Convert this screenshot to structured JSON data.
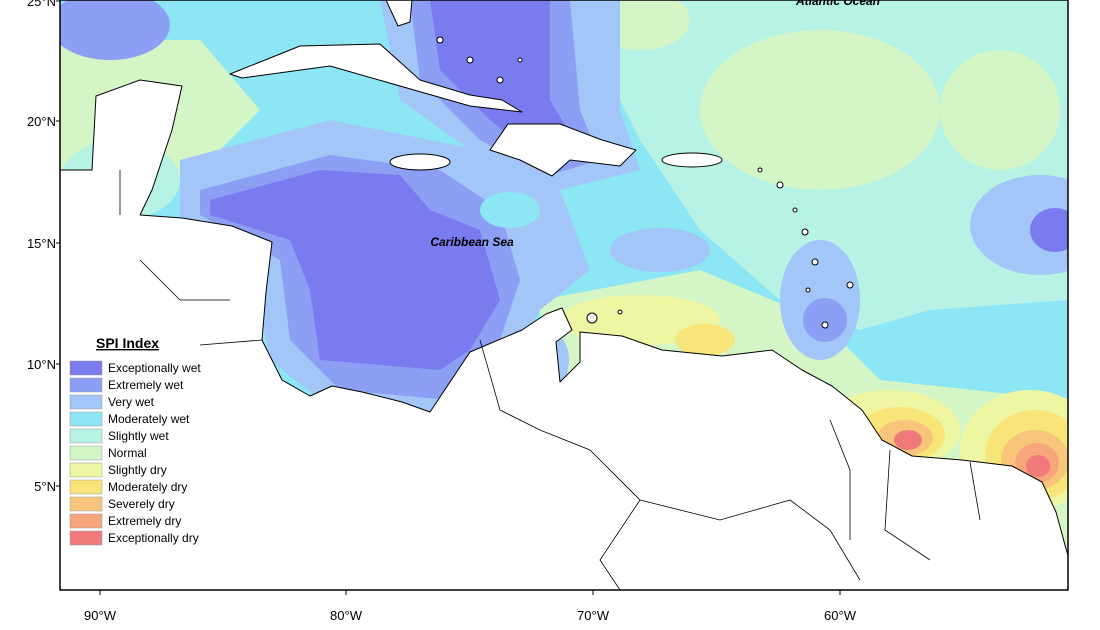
{
  "map": {
    "place_labels": {
      "atlantic": "Atlantic Ocean",
      "caribbean": "Caribbean Sea"
    },
    "latitude_labels": [
      "25°N",
      "20°N",
      "15°N",
      "10°N",
      "5°N"
    ],
    "longitude_labels": [
      "90°W",
      "80°W",
      "70°W",
      "60°W"
    ],
    "legend": {
      "title": "SPI Index",
      "items": [
        {
          "label": "Exceptionally wet",
          "color": "#7b7bf0"
        },
        {
          "label": "Extremely wet",
          "color": "#8c9ff5"
        },
        {
          "label": "Very wet",
          "color": "#a3c6f8"
        },
        {
          "label": "Moderately wet",
          "color": "#8de6f4"
        },
        {
          "label": "Slightly wet",
          "color": "#b6f3e4"
        },
        {
          "label": "Normal",
          "color": "#d4f5c6"
        },
        {
          "label": "Slightly dry",
          "color": "#eef6a2"
        },
        {
          "label": "Moderately dry",
          "color": "#f8e57a"
        },
        {
          "label": "Severely dry",
          "color": "#f8c67a"
        },
        {
          "label": "Extremely dry",
          "color": "#f7a57a"
        },
        {
          "label": "Exceptionally dry",
          "color": "#f07a7a"
        }
      ]
    }
  }
}
